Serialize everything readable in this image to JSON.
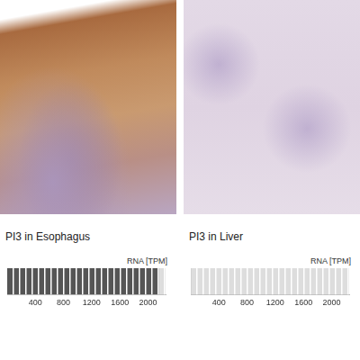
{
  "chart_data": [
    {
      "type": "bar",
      "title": "PI3 in Esophagus",
      "x_label": "RNA [TPM]",
      "orientation": "horizontal",
      "values": [
        2150
      ],
      "color": "#555555",
      "xlim": [
        0,
        2250
      ],
      "xticks": [
        400,
        800,
        1200,
        1600,
        2000
      ],
      "grid": false,
      "tick_labels": "x"
    },
    {
      "type": "bar",
      "title": "PI3 in Liver",
      "x_label": "RNA [TPM]",
      "orientation": "horizontal",
      "values": [
        0
      ],
      "color": "#bbbbbb",
      "xlim": [
        0,
        2250
      ],
      "xticks": [
        400,
        800,
        1200,
        1600,
        2000
      ],
      "grid": false,
      "tick_labels": "x"
    }
  ]
}
